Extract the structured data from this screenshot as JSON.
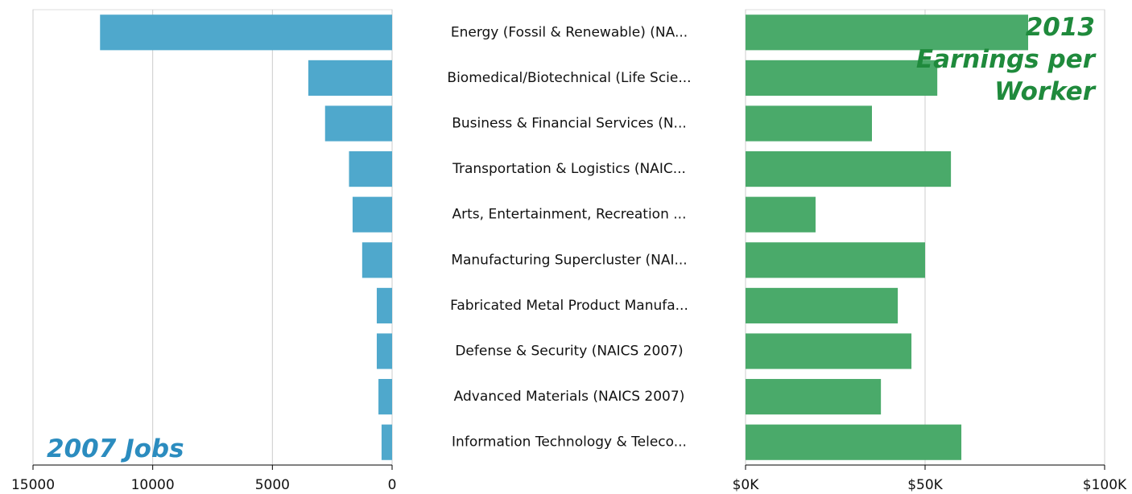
{
  "chart_data": [
    {
      "type": "bar",
      "title": "2007 Jobs",
      "color": "#4fa8cc",
      "categories": [
        "Energy (Fossil & Renewable) (NA...",
        "Biomedical/Biotechnical (Life Scie...",
        "Business & Financial Services (N...",
        "Transportation & Logistics (NAIC...",
        "Arts, Entertainment, Recreation ...",
        "Manufacturing Supercluster (NAI...",
        "Fabricated Metal Product Manufa...",
        "Defense & Security (NAICS 2007)",
        "Advanced Materials (NAICS 2007)",
        "Information Technology & Teleco..."
      ],
      "values": [
        12200,
        3500,
        2800,
        1800,
        1650,
        1250,
        640,
        640,
        570,
        440
      ],
      "xlim": [
        15000,
        0
      ],
      "xticks": [
        15000,
        10000,
        5000,
        0
      ],
      "grid": true
    },
    {
      "type": "bar",
      "title": "2013 Earnings per Worker",
      "color": "#4aaa6a",
      "values": [
        78700,
        53400,
        35200,
        57200,
        19500,
        50000,
        42400,
        46200,
        37700,
        60100
      ],
      "xlim": [
        0,
        100000
      ],
      "xticks": [
        {
          "value": 0,
          "label": "$0K"
        },
        {
          "value": 50000,
          "label": "$50K"
        },
        {
          "value": 100000,
          "label": "$100K"
        }
      ],
      "grid": true
    }
  ]
}
